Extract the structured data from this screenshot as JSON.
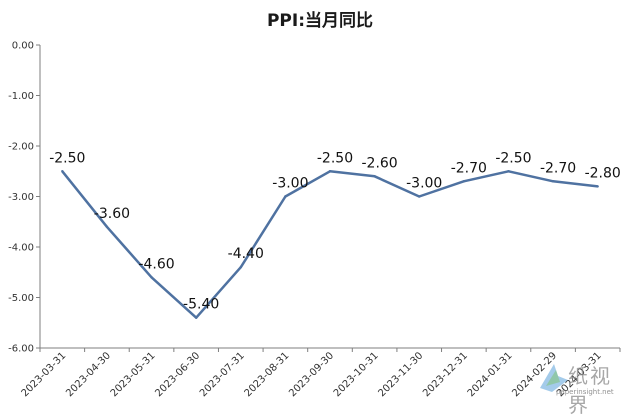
{
  "chart_data": {
    "type": "line",
    "title": "PPI:当月同比",
    "xlabel": "",
    "ylabel": "",
    "categories": [
      "2023-03-31",
      "2023-04-30",
      "2023-05-31",
      "2023-06-30",
      "2023-07-31",
      "2023-08-31",
      "2023-09-30",
      "2023-10-31",
      "2023-11-30",
      "2023-12-31",
      "2024-01-31",
      "2024-02-29",
      "2024-03-31"
    ],
    "series": [
      {
        "values": [
          -2.5,
          -3.6,
          -4.6,
          -5.4,
          -4.4,
          -3.0,
          -2.5,
          -2.6,
          -3.0,
          -2.7,
          -2.5,
          -2.7,
          -2.8
        ],
        "labels": [
          "-2.50",
          "-3.60",
          "-4.60",
          "-5.40",
          "-4.40",
          "-3.00",
          "-2.50",
          "-2.60",
          "-3.00",
          "-2.70",
          "-2.50",
          "-2.70",
          "-2.80"
        ]
      }
    ],
    "ylim": [
      -6,
      0
    ],
    "yticks": [
      0,
      -1,
      -2,
      -3,
      -4,
      -5,
      -6
    ],
    "ytick_labels": [
      "0.00",
      "-1.00",
      "-2.00",
      "-3.00",
      "-4.00",
      "-5.00",
      "-6.00"
    ],
    "grid": false,
    "legend": "none",
    "line_color": "#4f72a1"
  },
  "watermark": {
    "text": "纸视界",
    "url": "paperinsight.net"
  }
}
